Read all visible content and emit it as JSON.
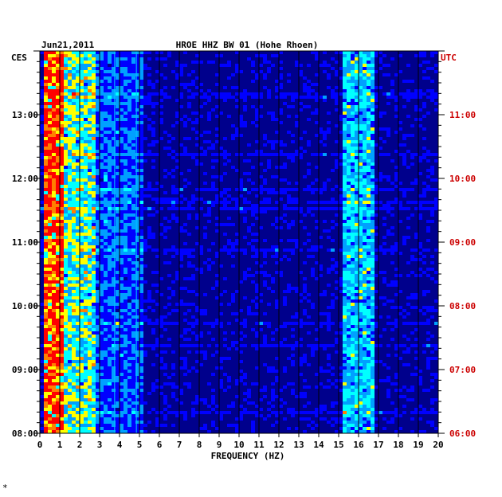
{
  "chart_data": {
    "type": "heatmap",
    "title": "HROE HHZ BW 01 (Hohe Rhoen)",
    "date": "Jun21,2011",
    "xlabel": "FREQUENCY (HZ)",
    "x_ticks": [
      "0",
      "1",
      "2",
      "3",
      "4",
      "5",
      "6",
      "7",
      "8",
      "9",
      "10",
      "11",
      "12",
      "13",
      "14",
      "15",
      "16",
      "17",
      "18",
      "19",
      "20"
    ],
    "xlim": [
      0,
      20
    ],
    "left_axis": {
      "label": "CES",
      "ticks": [
        "13:00",
        "12:00",
        "11:00",
        "10:00",
        "09:00",
        "08:00"
      ],
      "ylim": [
        "08:00",
        "14:00"
      ]
    },
    "right_axis": {
      "label": "UTC",
      "ticks": [
        "11:00",
        "10:00",
        "09:00",
        "08:00",
        "07:00",
        "06:00"
      ],
      "ylim": [
        "06:00",
        "12:00"
      ]
    },
    "colormap": [
      "#00008c",
      "#0000ff",
      "#00a0ff",
      "#00ffff",
      "#ffff00",
      "#ff8000",
      "#ff0000"
    ],
    "energy_bands": [
      {
        "f_from": 0.2,
        "f_to": 1.2,
        "level": 0.85
      },
      {
        "f_from": 1.2,
        "f_to": 2.9,
        "level": 0.45
      },
      {
        "f_from": 2.9,
        "f_to": 5.2,
        "level": 0.22
      },
      {
        "f_from": 15.2,
        "f_to": 16.9,
        "level": 0.35
      }
    ],
    "persistent_lines_hz": [
      3.75,
      4.85
    ]
  },
  "footer_mark": "*"
}
